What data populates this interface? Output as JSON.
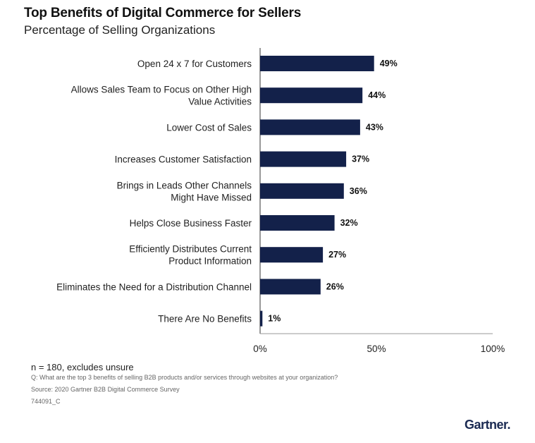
{
  "header": {
    "title": "Top Benefits of Digital Commerce for Sellers",
    "subtitle": "Percentage of Selling Organizations"
  },
  "chart_data": {
    "type": "bar",
    "orientation": "horizontal",
    "title": "Top Benefits of Digital Commerce for Sellers",
    "subtitle": "Percentage of Selling Organizations",
    "categories": [
      "Open 24 x 7 for Customers",
      "Allows Sales Team to Focus on Other High Value Activities",
      "Lower Cost of Sales",
      "Increases Customer Satisfaction",
      "Brings in Leads Other Channels Might Have Missed",
      "Helps Close Business Faster",
      "Efficiently Distributes Current Product Information",
      "Eliminates the Need for a Distribution Channel",
      "There Are No Benefits"
    ],
    "category_lines": [
      [
        "Open 24 x 7 for Customers"
      ],
      [
        "Allows Sales Team to Focus on Other High",
        "Value Activities"
      ],
      [
        "Lower Cost of Sales"
      ],
      [
        "Increases Customer Satisfaction"
      ],
      [
        "Brings in Leads Other Channels",
        "Might Have Missed"
      ],
      [
        "Helps Close Business Faster"
      ],
      [
        "Efficiently Distributes Current",
        "Product Information"
      ],
      [
        "Eliminates the Need for a Distribution Channel"
      ],
      [
        "There Are No Benefits"
      ]
    ],
    "values": [
      49,
      44,
      43,
      37,
      36,
      32,
      27,
      26,
      1
    ],
    "value_labels": [
      "49%",
      "44%",
      "43%",
      "37%",
      "36%",
      "32%",
      "27%",
      "26%",
      "1%"
    ],
    "xlim": [
      0,
      100
    ],
    "xticks": [
      0,
      50,
      100
    ],
    "xtick_labels": [
      "0%",
      "50%",
      "100%"
    ],
    "bar_color": "#13214a",
    "axis_color": "#333333",
    "grid": false
  },
  "notes": {
    "sample": "n = 180, excludes unsure",
    "question": "Q: What are the top 3 benefits of selling B2B products and/or services through websites at your organization?",
    "source": "Source: 2020 Gartner B2B Digital Commerce Survey",
    "id": "744091_C"
  },
  "logo": {
    "text": "Gartner",
    "dot": "."
  }
}
